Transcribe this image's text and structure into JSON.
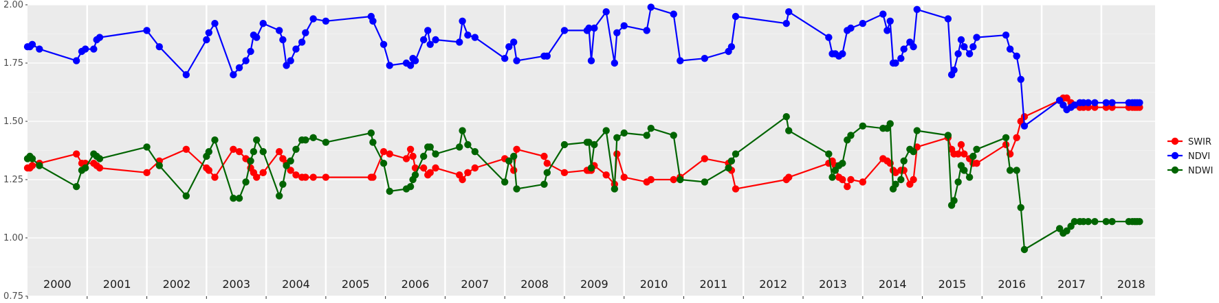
{
  "chart_data": {
    "type": "line",
    "title": "",
    "xlabel": "",
    "ylabel": "",
    "xlim": [
      2000.0,
      2018.9
    ],
    "ylim": [
      0.75,
      2.0
    ],
    "yticks": [
      0.75,
      1.0,
      1.25,
      1.5,
      1.75,
      2.0
    ],
    "ytick_labels": [
      "0.75",
      "1.00",
      "1.25",
      "1.50",
      "1.75",
      "2.00"
    ],
    "years": [
      "2000",
      "2001",
      "2002",
      "2003",
      "2004",
      "2005",
      "2006",
      "2007",
      "2008",
      "2009",
      "2010",
      "2011",
      "2012",
      "2013",
      "2014",
      "2015",
      "2016",
      "2017",
      "2018"
    ],
    "grid": true,
    "legend_position": "right",
    "legend": [
      "SWIR",
      "NDVI",
      "NDWI"
    ],
    "colors": {
      "SWIR": "#ff0000",
      "NDVI": "#0000ff",
      "NDWI": "#006400"
    },
    "x": [
      2000.0,
      2000.04,
      2000.08,
      2000.2,
      2000.82,
      2000.91,
      2000.97,
      2001.11,
      2001.16,
      2001.21,
      2002.0,
      2002.21,
      2002.66,
      2003.0,
      2003.04,
      2003.14,
      2003.45,
      2003.55,
      2003.66,
      2003.74,
      2003.79,
      2003.84,
      2003.95,
      2004.22,
      2004.28,
      2004.34,
      2004.41,
      2004.5,
      2004.6,
      2004.66,
      2004.79,
      2005.0,
      2005.76,
      2005.79,
      2005.97,
      2006.07,
      2006.35,
      2006.42,
      2006.46,
      2006.5,
      2006.64,
      2006.71,
      2006.75,
      2006.84,
      2007.24,
      2007.29,
      2007.38,
      2007.5,
      2008.0,
      2008.07,
      2008.15,
      2008.2,
      2008.66,
      2008.71,
      2009.0,
      2009.38,
      2009.41,
      2009.45,
      2009.5,
      2009.7,
      2009.84,
      2009.88,
      2010.0,
      2010.38,
      2010.45,
      2010.83,
      2010.94,
      2011.35,
      2011.75,
      2011.8,
      2011.87,
      2012.72,
      2012.76,
      2013.43,
      2013.49,
      2013.54,
      2013.6,
      2013.66,
      2013.74,
      2013.8,
      2014.0,
      2014.34,
      2014.41,
      2014.46,
      2014.51,
      2014.55,
      2014.64,
      2014.69,
      2014.79,
      2014.85,
      2014.91,
      2015.43,
      2015.49,
      2015.53,
      2015.6,
      2015.65,
      2015.7,
      2015.79,
      2015.85,
      2015.91,
      2016.4,
      2016.47,
      2016.58,
      2016.65,
      2016.71,
      2017.3,
      2017.36,
      2017.42,
      2017.49,
      2017.55,
      2017.64,
      2017.7,
      2017.78,
      2017.89,
      2018.08,
      2018.18,
      2018.46,
      2018.52,
      2018.56,
      2018.6,
      2018.64
    ],
    "series": [
      {
        "name": "SWIR",
        "values": [
          1.3,
          1.3,
          1.31,
          1.32,
          1.36,
          1.32,
          1.32,
          1.32,
          1.31,
          1.3,
          1.28,
          1.33,
          1.38,
          1.3,
          1.29,
          1.26,
          1.38,
          1.37,
          1.34,
          1.3,
          1.28,
          1.26,
          1.28,
          1.37,
          1.34,
          1.32,
          1.29,
          1.27,
          1.26,
          1.26,
          1.26,
          1.26,
          1.26,
          1.26,
          1.37,
          1.36,
          1.34,
          1.38,
          1.35,
          1.3,
          1.3,
          1.27,
          1.28,
          1.3,
          1.27,
          1.25,
          1.28,
          1.3,
          1.34,
          1.33,
          1.29,
          1.38,
          1.35,
          1.32,
          1.28,
          1.29,
          1.29,
          1.29,
          1.31,
          1.27,
          1.23,
          1.36,
          1.26,
          1.24,
          1.25,
          1.25,
          1.26,
          1.34,
          1.32,
          1.29,
          1.21,
          1.25,
          1.26,
          1.32,
          1.33,
          1.31,
          1.26,
          1.25,
          1.22,
          1.25,
          1.24,
          1.34,
          1.33,
          1.32,
          1.29,
          1.28,
          1.29,
          1.29,
          1.23,
          1.25,
          1.39,
          1.43,
          1.38,
          1.36,
          1.36,
          1.4,
          1.36,
          1.34,
          1.32,
          1.32,
          1.4,
          1.36,
          1.43,
          1.5,
          1.52,
          1.59,
          1.6,
          1.6,
          1.58,
          1.57,
          1.56,
          1.56,
          1.56,
          1.56,
          1.56,
          1.56,
          1.56,
          1.56,
          1.56,
          1.56,
          1.56
        ]
      },
      {
        "name": "NDVI",
        "values": [
          1.82,
          1.82,
          1.83,
          1.81,
          1.76,
          1.8,
          1.81,
          1.81,
          1.85,
          1.86,
          1.89,
          1.82,
          1.7,
          1.85,
          1.88,
          1.92,
          1.7,
          1.73,
          1.76,
          1.8,
          1.87,
          1.86,
          1.92,
          1.89,
          1.85,
          1.74,
          1.76,
          1.81,
          1.84,
          1.88,
          1.94,
          1.93,
          1.95,
          1.93,
          1.83,
          1.74,
          1.75,
          1.74,
          1.77,
          1.76,
          1.85,
          1.89,
          1.83,
          1.85,
          1.84,
          1.93,
          1.87,
          1.86,
          1.77,
          1.82,
          1.84,
          1.76,
          1.78,
          1.78,
          1.89,
          1.89,
          1.9,
          1.76,
          1.9,
          1.97,
          1.75,
          1.88,
          1.91,
          1.89,
          1.99,
          1.96,
          1.76,
          1.77,
          1.8,
          1.82,
          1.95,
          1.92,
          1.97,
          1.86,
          1.79,
          1.79,
          1.78,
          1.79,
          1.89,
          1.9,
          1.92,
          1.96,
          1.89,
          1.93,
          1.75,
          1.75,
          1.77,
          1.81,
          1.84,
          1.82,
          1.98,
          1.94,
          1.7,
          1.72,
          1.79,
          1.85,
          1.82,
          1.79,
          1.82,
          1.86,
          1.87,
          1.81,
          1.78,
          1.68,
          1.48,
          1.59,
          1.57,
          1.55,
          1.56,
          1.57,
          1.58,
          1.58,
          1.58,
          1.58,
          1.58,
          1.58,
          1.58,
          1.58,
          1.58,
          1.58,
          1.58
        ]
      },
      {
        "name": "NDWI",
        "values": [
          1.34,
          1.35,
          1.34,
          1.31,
          1.22,
          1.29,
          1.3,
          1.36,
          1.35,
          1.34,
          1.39,
          1.31,
          1.18,
          1.35,
          1.37,
          1.42,
          1.17,
          1.17,
          1.24,
          1.33,
          1.37,
          1.42,
          1.37,
          1.18,
          1.23,
          1.31,
          1.33,
          1.38,
          1.42,
          1.42,
          1.43,
          1.41,
          1.45,
          1.41,
          1.32,
          1.2,
          1.21,
          1.22,
          1.25,
          1.27,
          1.35,
          1.39,
          1.39,
          1.36,
          1.39,
          1.46,
          1.4,
          1.37,
          1.24,
          1.33,
          1.35,
          1.21,
          1.23,
          1.28,
          1.4,
          1.41,
          1.41,
          1.3,
          1.4,
          1.46,
          1.21,
          1.43,
          1.45,
          1.44,
          1.47,
          1.44,
          1.25,
          1.24,
          1.3,
          1.33,
          1.36,
          1.52,
          1.46,
          1.36,
          1.26,
          1.29,
          1.31,
          1.32,
          1.42,
          1.44,
          1.48,
          1.47,
          1.47,
          1.49,
          1.21,
          1.23,
          1.25,
          1.33,
          1.38,
          1.37,
          1.46,
          1.44,
          1.14,
          1.16,
          1.24,
          1.31,
          1.29,
          1.26,
          1.35,
          1.38,
          1.43,
          1.29,
          1.29,
          1.13,
          0.95,
          1.04,
          1.02,
          1.03,
          1.05,
          1.07,
          1.07,
          1.07,
          1.07,
          1.07,
          1.07,
          1.07,
          1.07,
          1.07,
          1.07,
          1.07,
          1.07
        ]
      }
    ]
  }
}
